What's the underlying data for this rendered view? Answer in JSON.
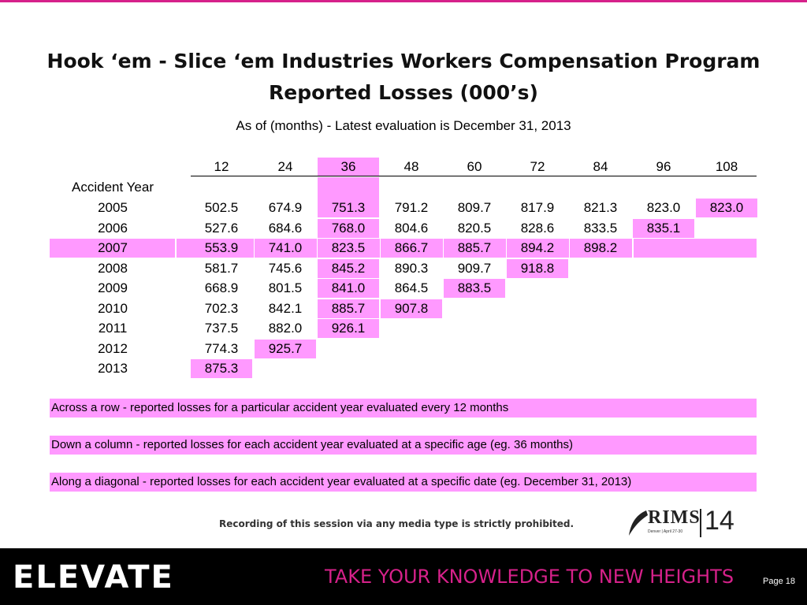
{
  "title_line1": "Hook ‘em - Slice ‘em Industries Workers Compensation Program",
  "title_line2": "Reported Losses (000’s)",
  "subtitle": "As of (months) - Latest evaluation is December 31, 2013",
  "row_header": "Accident Year",
  "ages": [
    "12",
    "24",
    "36",
    "48",
    "60",
    "72",
    "84",
    "96",
    "108"
  ],
  "rows": [
    {
      "year": "2005",
      "values": [
        "502.5",
        "674.9",
        "751.3",
        "791.2",
        "809.7",
        "817.9",
        "821.3",
        "823.0",
        "823.0"
      ]
    },
    {
      "year": "2006",
      "values": [
        "527.6",
        "684.6",
        "768.0",
        "804.6",
        "820.5",
        "828.6",
        "833.5",
        "835.1"
      ]
    },
    {
      "year": "2007",
      "values": [
        "553.9",
        "741.0",
        "823.5",
        "866.7",
        "885.7",
        "894.2",
        "898.2"
      ]
    },
    {
      "year": "2008",
      "values": [
        "581.7",
        "745.6",
        "845.2",
        "890.3",
        "909.7",
        "918.8"
      ]
    },
    {
      "year": "2009",
      "values": [
        "668.9",
        "801.5",
        "841.0",
        "864.5",
        "883.5"
      ]
    },
    {
      "year": "2010",
      "values": [
        "702.3",
        "842.1",
        "885.7",
        "907.8"
      ]
    },
    {
      "year": "2011",
      "values": [
        "737.5",
        "882.0",
        "926.1"
      ]
    },
    {
      "year": "2012",
      "values": [
        "774.3",
        "925.7"
      ]
    },
    {
      "year": "2013",
      "values": [
        "875.3"
      ]
    }
  ],
  "highlighted_row": "2007",
  "highlighted_column": "36",
  "notes": {
    "row": "Across a row - reported losses for a particular accident year evaluated every 12 months",
    "column": "Down a column - reported losses for each accident year evaluated at a specific age (eg. 36 months)",
    "diagonal": "Along a diagonal - reported losses for each accident year evaluated at a specific date (eg. December 31, 2013)"
  },
  "footer_note": "Recording of this session via any media type is strictly prohibited.",
  "logo": {
    "brand": "RIMS",
    "sub": "Denver | April 27-30",
    "year": "14"
  },
  "banner": {
    "brand": "ELEVATE",
    "tagline": "TAKE YOUR KNOWLEDGE TO NEW HEIGHTS"
  },
  "page": "Page 18",
  "colors": {
    "highlight": "#ff99ff",
    "accent": "#d6218a",
    "banner": "#000000"
  }
}
